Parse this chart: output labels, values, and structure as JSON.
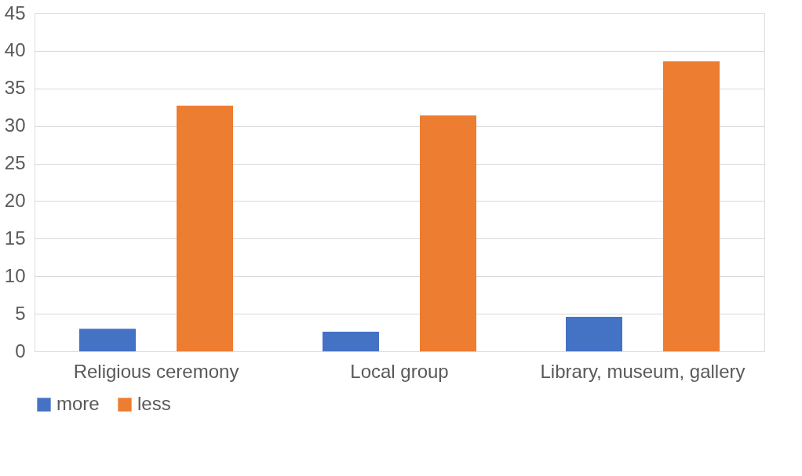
{
  "chart_data": {
    "type": "bar",
    "categories": [
      "Religious ceremony",
      "Local group",
      "Library, museum, gallery"
    ],
    "series": [
      {
        "name": "more",
        "color": "#4472c4",
        "values": [
          3.0,
          2.6,
          4.6
        ]
      },
      {
        "name": "less",
        "color": "#ed7d31",
        "values": [
          32.7,
          31.4,
          38.6
        ]
      }
    ],
    "ylim": [
      0,
      45
    ],
    "yticks": [
      0,
      5,
      10,
      15,
      20,
      25,
      30,
      35,
      40,
      45
    ],
    "grid": "y",
    "legend": "bottom"
  }
}
